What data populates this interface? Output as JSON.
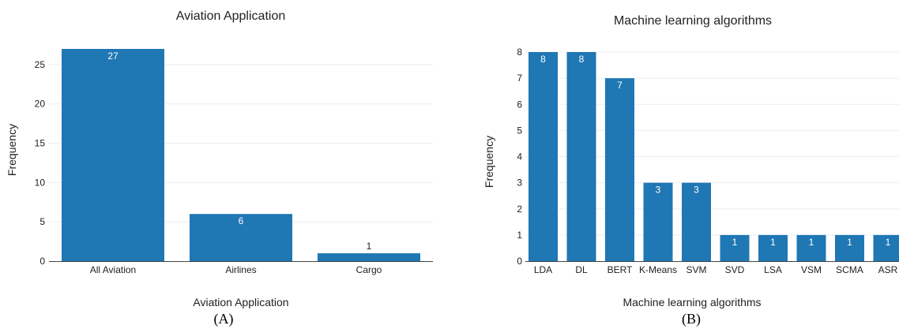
{
  "colors": {
    "bar": "#1f77b4",
    "grid": "#e9eef3",
    "axis": "#444444"
  },
  "chart_data": [
    {
      "type": "bar",
      "title": "Aviation Application",
      "xlabel": "Aviation Application",
      "ylabel": "Frequency",
      "caption": "(A)",
      "categories": [
        "All Aviation",
        "Airlines",
        "Cargo"
      ],
      "values": [
        27,
        6,
        1
      ],
      "ylim": [
        0,
        27
      ],
      "yticks": [
        0,
        5,
        10,
        15,
        20,
        25
      ],
      "grid": true,
      "data_labels": true
    },
    {
      "type": "bar",
      "title": "Machine learning algorithms",
      "xlabel": "Machine learning algorithms",
      "ylabel": "Frequency",
      "caption": "(B)",
      "categories": [
        "LDA",
        "DL",
        "BERT",
        "K-Means",
        "SVM",
        "SVD",
        "LSA",
        "VSM",
        "SCMA",
        "ASR"
      ],
      "values": [
        8,
        8,
        7,
        3,
        3,
        1,
        1,
        1,
        1,
        1
      ],
      "ylim": [
        0,
        8
      ],
      "yticks": [
        0,
        1,
        2,
        3,
        4,
        5,
        6,
        7,
        8
      ],
      "grid": true,
      "data_labels": true
    }
  ]
}
